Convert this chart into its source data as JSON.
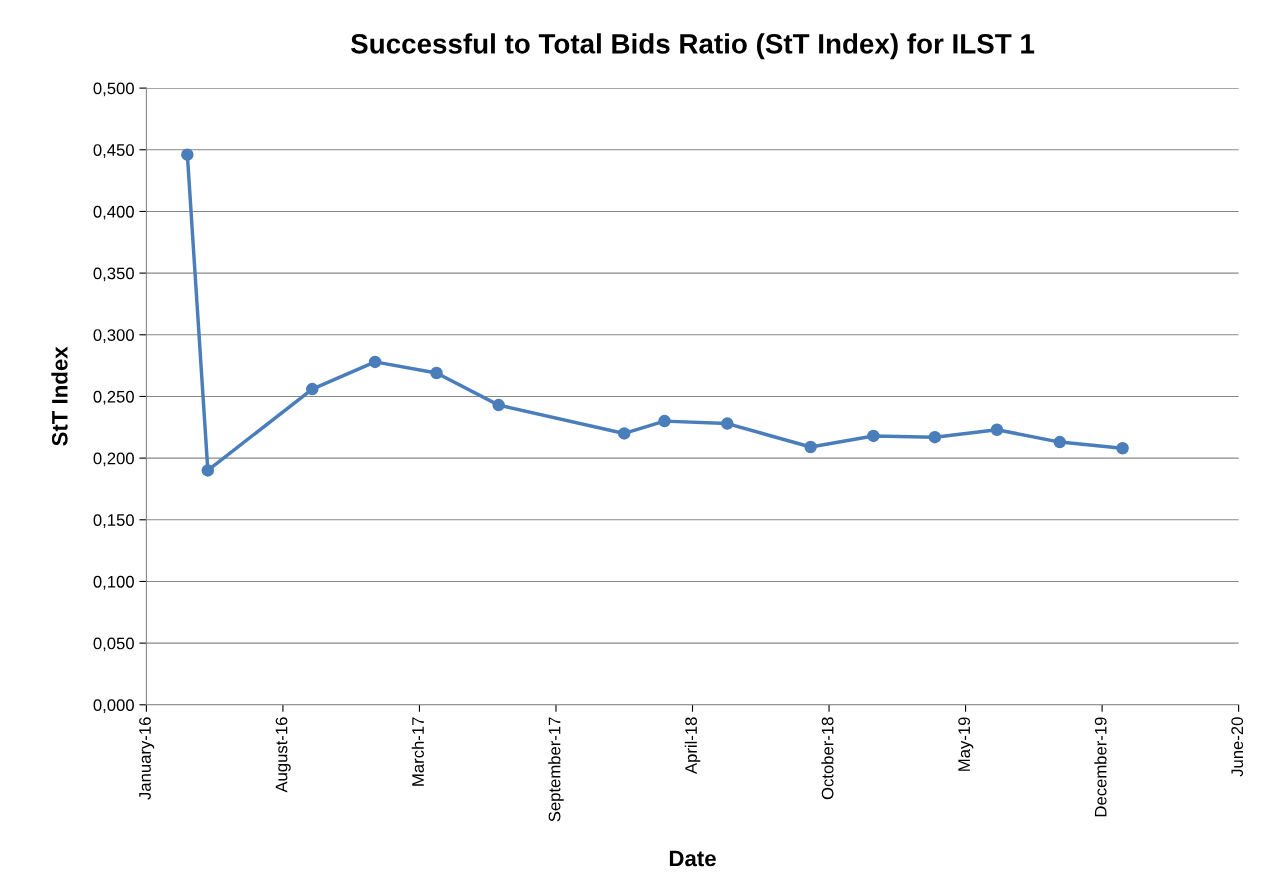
{
  "chart_data": {
    "type": "line",
    "title": "Successful to Total Bids Ratio (StT Index) for ILST 1",
    "xlabel": "Date",
    "ylabel": "StT Index",
    "x": [
      "2016-03-31",
      "2016-04-30",
      "2016-09-30",
      "2016-12-31",
      "2017-03-31",
      "2017-06-30",
      "2017-12-31",
      "2018-02-28",
      "2018-05-31",
      "2018-09-30",
      "2018-12-31",
      "2019-03-31",
      "2019-06-30",
      "2019-09-30",
      "2019-12-31"
    ],
    "series": [
      {
        "color": "#4a7ebb",
        "values": [
          0.446,
          0.19,
          0.256,
          0.278,
          0.269,
          0.243,
          0.22,
          0.23,
          0.228,
          0.209,
          0.218,
          0.217,
          0.223,
          0.213,
          0.208
        ]
      }
    ],
    "xlim": [
      "2016-01-31",
      "2020-06-18"
    ],
    "xticks": [
      {
        "value": "2016-01-31",
        "label": "January-16"
      },
      {
        "value": "2016-08-18",
        "label": "August-16"
      },
      {
        "value": "2017-03-06",
        "label": "March-17"
      },
      {
        "value": "2017-09-22",
        "label": "September-17"
      },
      {
        "value": "2018-04-10",
        "label": "April-18"
      },
      {
        "value": "2018-10-27",
        "label": "October-18"
      },
      {
        "value": "2019-05-15",
        "label": "May-19"
      },
      {
        "value": "2019-12-01",
        "label": "December-19"
      },
      {
        "value": "2020-06-18",
        "label": "June-20"
      }
    ],
    "ylim": [
      0,
      0.5
    ],
    "yticks": [
      {
        "value": 0,
        "label": "0,000"
      },
      {
        "value": 0.05,
        "label": "0,050"
      },
      {
        "value": 0.1,
        "label": "0,100"
      },
      {
        "value": 0.15,
        "label": "0,150"
      },
      {
        "value": 0.2,
        "label": "0,200"
      },
      {
        "value": 0.25,
        "label": "0,250"
      },
      {
        "value": 0.3,
        "label": "0,300"
      },
      {
        "value": 0.35,
        "label": "0,350"
      },
      {
        "value": 0.4,
        "label": "0,400"
      },
      {
        "value": 0.45,
        "label": "0,450"
      },
      {
        "value": 0.5,
        "label": "0,500"
      }
    ],
    "grid": "y",
    "marker": "circle",
    "line_style": "solid"
  }
}
